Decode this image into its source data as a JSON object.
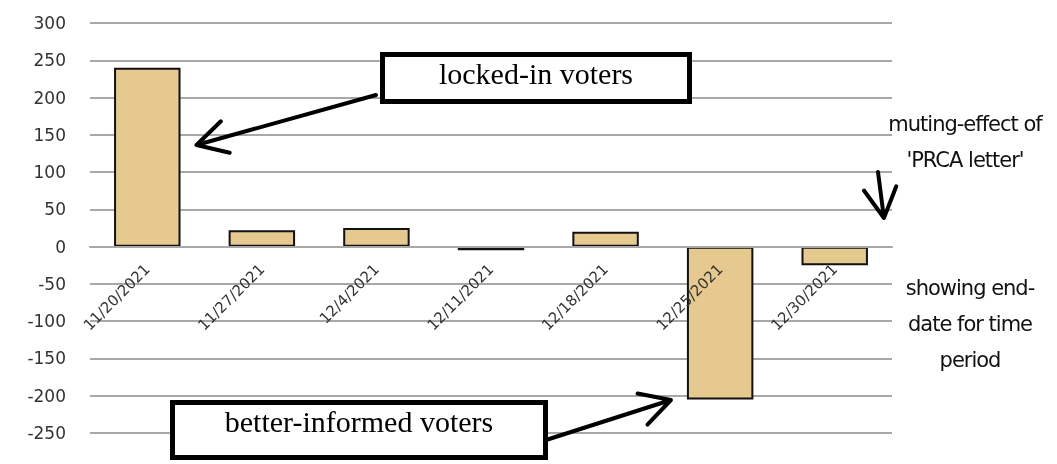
{
  "chart_data": {
    "type": "bar",
    "categories": [
      "11/20/2021",
      "11/27/2021",
      "12/4/2021",
      "12/11/2021",
      "12/18/2021",
      "12/25/2021",
      "12/30/2021"
    ],
    "values": [
      240,
      22,
      25,
      -5,
      20,
      -205,
      -25
    ],
    "color": "#e6c98f",
    "ylim": [
      -250,
      300
    ],
    "yticks": [
      -250,
      -200,
      -150,
      -100,
      -50,
      0,
      50,
      100,
      150,
      200,
      250,
      300
    ],
    "grid": "y",
    "annotations": [
      "locked-in voters",
      "better-informed voters",
      "muting-effect of 'PRCA letter'",
      "showing end-date for time period"
    ]
  }
}
